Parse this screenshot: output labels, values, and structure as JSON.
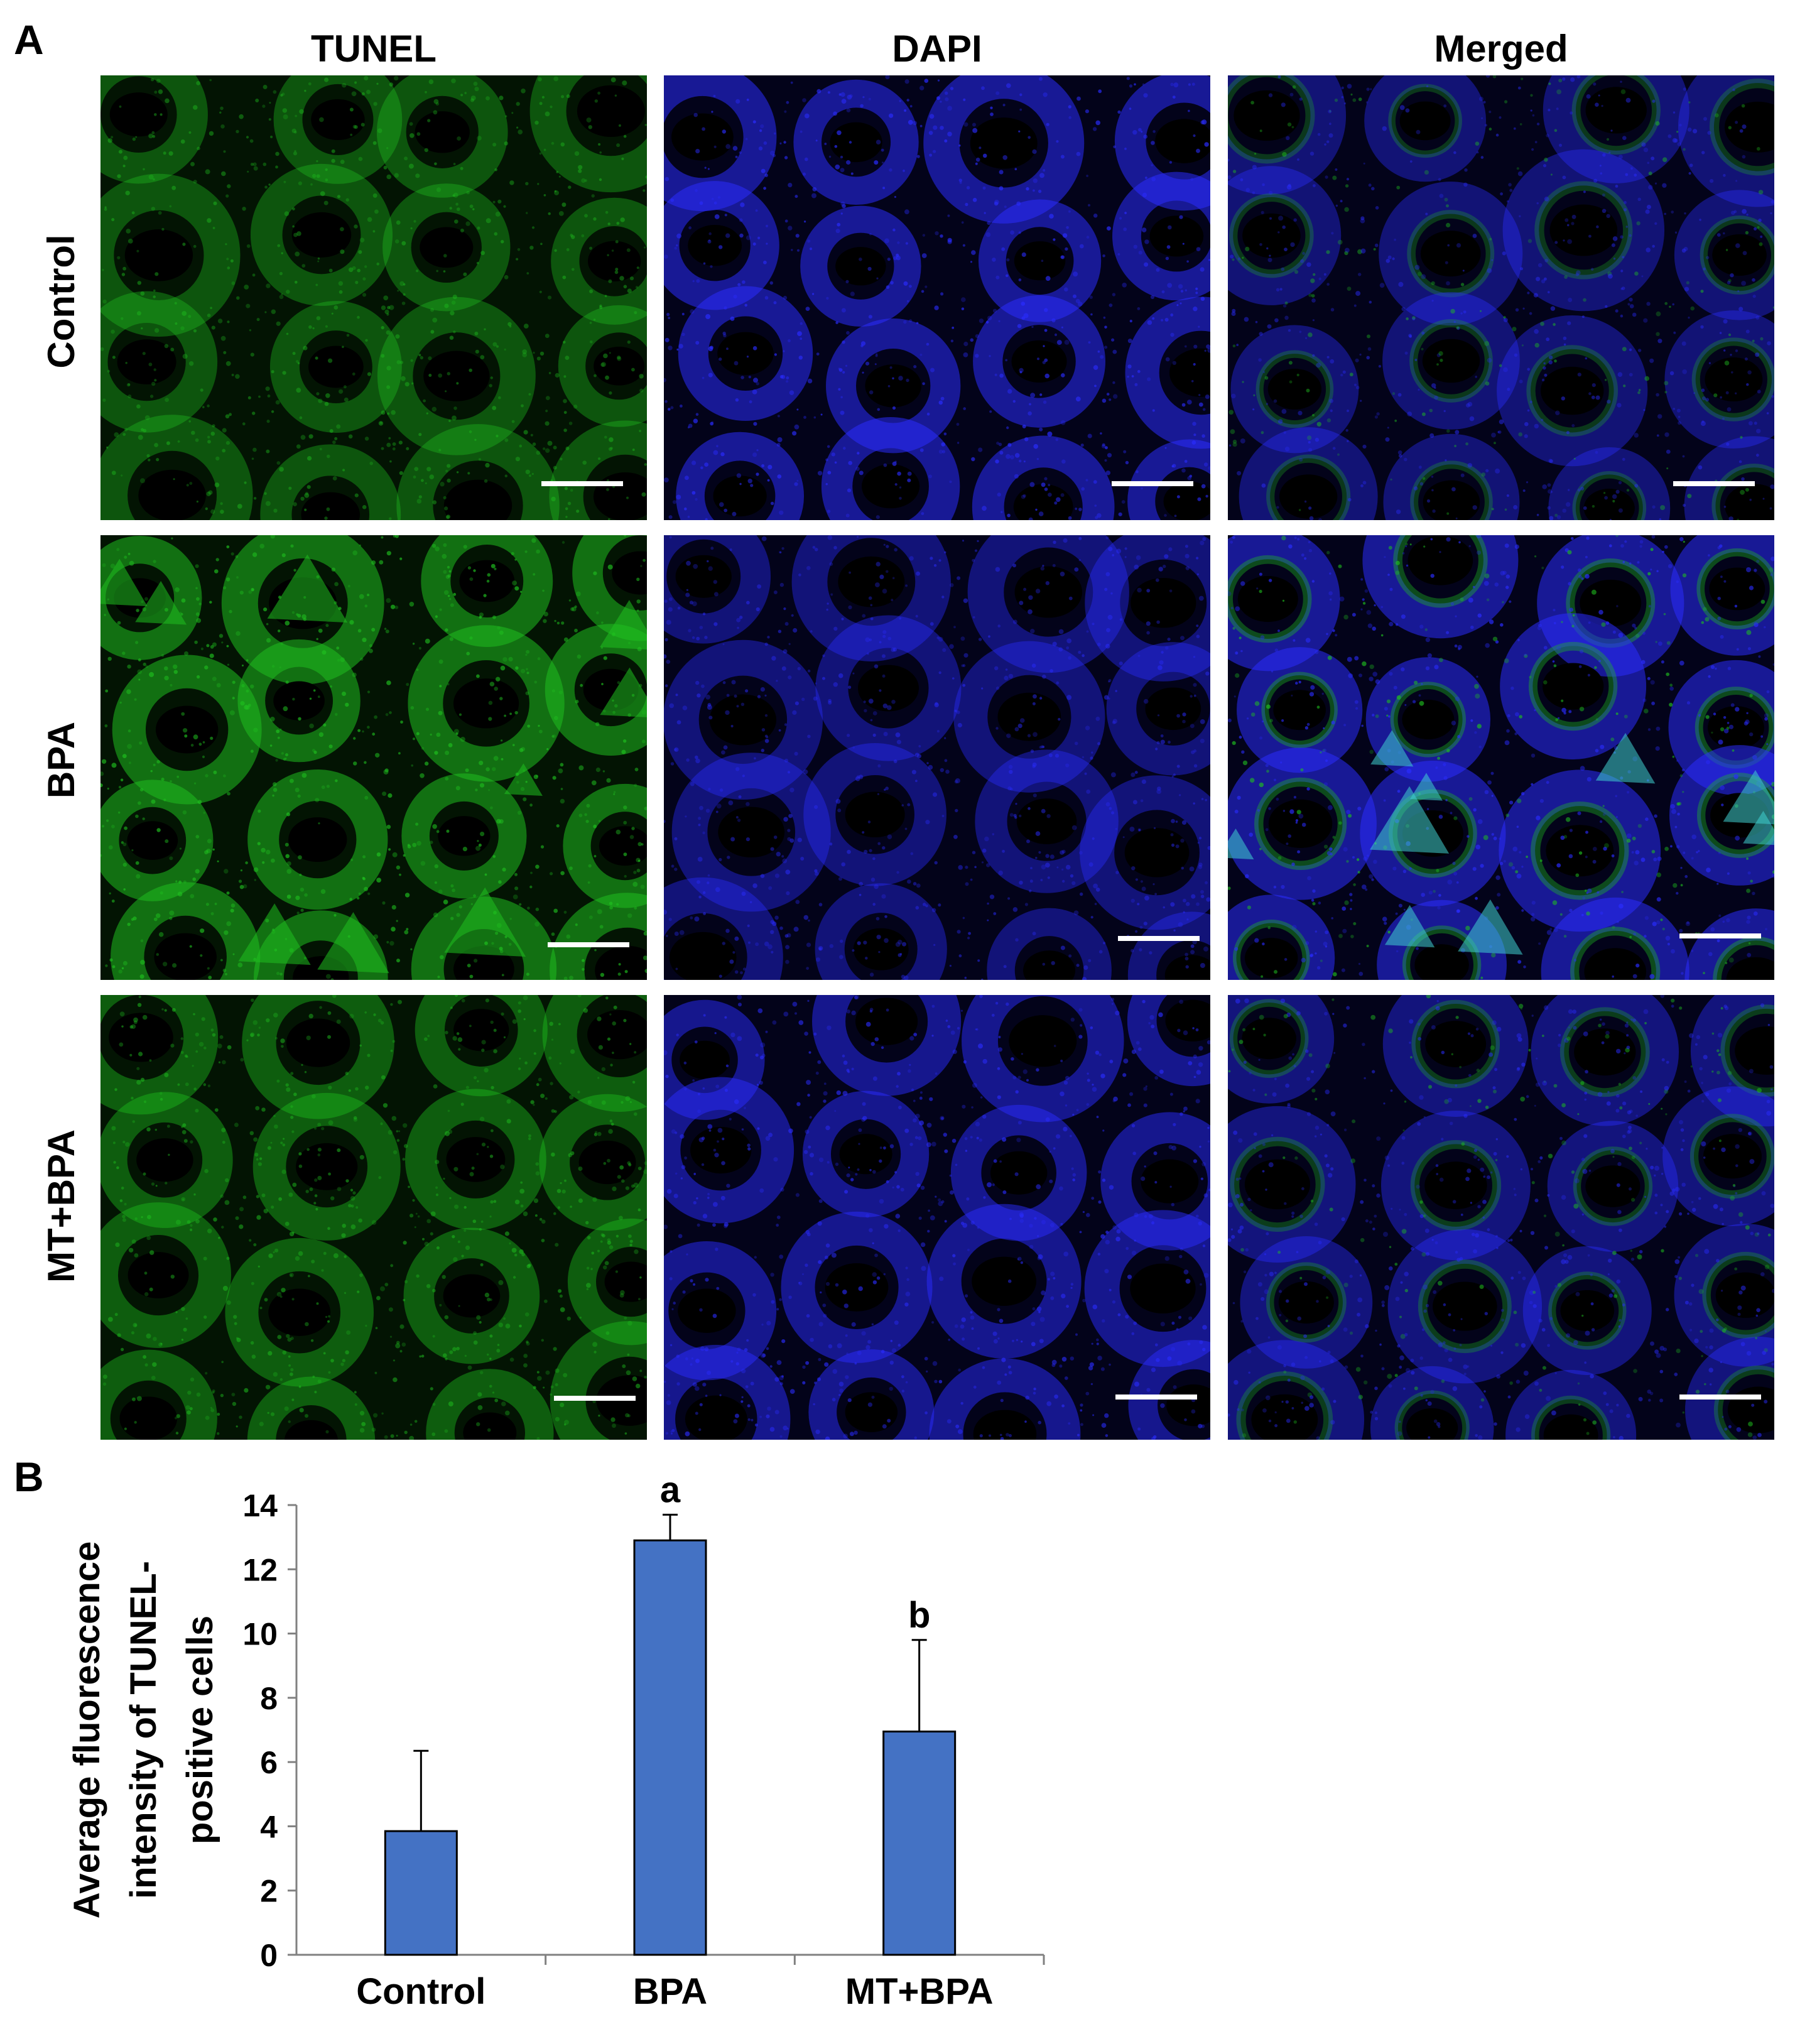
{
  "figure": {
    "panel_a": {
      "letter": "A",
      "columns": [
        "TUNEL",
        "DAPI",
        "Merged"
      ],
      "rows": [
        "Control",
        "BPA",
        "MT+BPA"
      ]
    },
    "panel_b": {
      "letter": "B"
    }
  },
  "colors": {
    "tunel": "#1fbf1f",
    "dapi": "#2a2cff",
    "bar": "#4472c4"
  },
  "chart_data": {
    "type": "bar",
    "categories": [
      "Control",
      "BPA",
      "MT+BPA"
    ],
    "values": [
      3.85,
      12.9,
      6.95
    ],
    "error": [
      2.5,
      0.8,
      2.85
    ],
    "annotations": [
      "",
      "a",
      "b"
    ],
    "ylabel": "Average fluorescence intensity of TUNEL-positive cells",
    "ylabel_lines": [
      "Average fluorescence",
      "intensity of TUNEL-",
      "positive cells"
    ],
    "ylim": [
      0,
      14
    ],
    "yticks": [
      0,
      2,
      4,
      6,
      8,
      10,
      12,
      14
    ],
    "grid": false
  }
}
